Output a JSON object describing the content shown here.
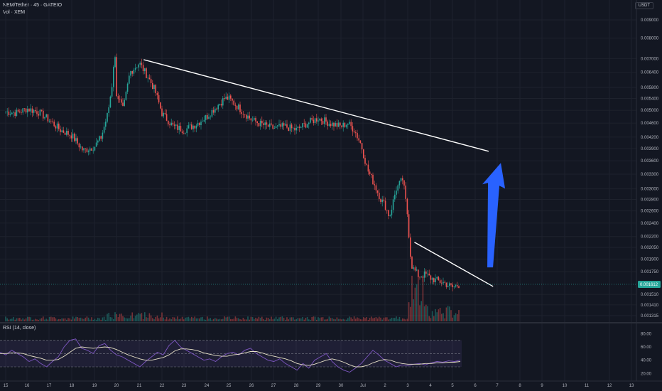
{
  "header": {
    "symbol_line": "NEM/Tether · 45 · GATEIO",
    "volume_line": "Vol · XEM",
    "unit": "USDT"
  },
  "colors": {
    "background": "#131722",
    "up": "#26a69a",
    "down": "#ef5350",
    "trendline": "#ffffff",
    "arrow": "#2962ff",
    "rsi_line": "#7e57c2",
    "rsi_ma": "#e8e2c8",
    "rsi_band": "#7e57c2"
  },
  "chart_data": [
    {
      "type": "candlestick",
      "title": "",
      "x_ticks": [
        "15",
        "16",
        "17",
        "18",
        "19",
        "20",
        "21",
        "22",
        "23",
        "24",
        "25",
        "26",
        "27",
        "28",
        "29",
        "30",
        "Jul",
        "2",
        "3",
        "4",
        "5",
        "6",
        "7",
        "8",
        "9",
        "10",
        "11",
        "12",
        "13"
      ],
      "y_ticks": [
        "0.009000",
        "0.008000",
        "0.007000",
        "0.006400",
        "0.005800",
        "0.005400",
        "0.005000",
        "0.004600",
        "0.004200",
        "0.003900",
        "0.003600",
        "0.003300",
        "0.003000",
        "0.002800",
        "0.002600",
        "0.002400",
        "0.002200",
        "0.002050",
        "0.001900",
        "0.001750",
        "0.001510",
        "0.001410",
        "0.001315"
      ],
      "y_scale": "log",
      "last_price": "0.001612",
      "close_path": [
        [
          "15",
          0.00495
        ],
        [
          "15.5",
          0.00492
        ],
        [
          "16",
          0.00505
        ],
        [
          "16.5",
          0.00495
        ],
        [
          "17",
          0.0047
        ],
        [
          "17.5",
          0.0044
        ],
        [
          "18",
          0.00425
        ],
        [
          "18.5",
          0.00385
        ],
        [
          "19",
          0.00395
        ],
        [
          "19.3",
          0.0042
        ],
        [
          "19.6",
          0.0049
        ],
        [
          "19.8",
          0.006
        ],
        [
          "19.9",
          0.0075
        ],
        [
          "20",
          0.0056
        ],
        [
          "20.3",
          0.005
        ],
        [
          "20.6",
          0.0064
        ],
        [
          "21",
          0.0068
        ],
        [
          "21.4",
          0.0062
        ],
        [
          "21.7",
          0.0057
        ],
        [
          "22",
          0.0049
        ],
        [
          "22.5",
          0.0045
        ],
        [
          "23",
          0.0044
        ],
        [
          "23.5",
          0.00455
        ],
        [
          "24",
          0.0048
        ],
        [
          "24.4",
          0.0051
        ],
        [
          "24.8",
          0.0054
        ],
        [
          "25",
          0.0054
        ],
        [
          "25.5",
          0.00505
        ],
        [
          "26",
          0.0047
        ],
        [
          "26.5",
          0.00455
        ],
        [
          "27",
          0.00445
        ],
        [
          "27.5",
          0.0045
        ],
        [
          "28",
          0.0044
        ],
        [
          "28.5",
          0.0046
        ],
        [
          "29",
          0.00475
        ],
        [
          "29.5",
          0.0046
        ],
        [
          "30",
          0.0045
        ],
        [
          "30.3",
          0.0046
        ],
        [
          "30.6",
          0.0044
        ],
        [
          "30.9",
          0.004
        ],
        [
          "Jul.2",
          0.0034
        ],
        [
          "Jul.5",
          0.0031
        ],
        [
          "Jul.8",
          0.0028
        ],
        [
          "2",
          0.0027
        ],
        [
          "2.2",
          0.0025
        ],
        [
          "2.5",
          0.003
        ],
        [
          "2.8",
          0.0032
        ],
        [
          "3",
          0.0025
        ],
        [
          "3.1",
          0.002
        ],
        [
          "3.2",
          0.0018
        ],
        [
          "3.5",
          0.0017
        ],
        [
          "3.8",
          0.00172
        ],
        [
          "4",
          0.00168
        ],
        [
          "4.3",
          0.00165
        ],
        [
          "4.6",
          0.00163
        ],
        [
          "5",
          0.00158
        ],
        [
          "5.3",
          0.00161
        ]
      ],
      "trendlines": [
        {
          "from": [
            "21.2",
            0.00695
          ],
          "to": [
            "6.6",
            0.00383
          ]
        },
        {
          "from": [
            "3.3",
            0.00212
          ],
          "to": [
            "6.8",
            0.00159
          ]
        }
      ],
      "annotation_arrow": {
        "from": [
          "6.7",
          0.0018
        ],
        "to": [
          "6.7",
          0.00355
        ],
        "meaning": "up"
      }
    },
    {
      "type": "line",
      "title": "RSI (14, close)",
      "y_ticks": [
        "80.00",
        "60.00",
        "40.00",
        "20.00"
      ],
      "ylim": [
        15,
        90
      ],
      "bands": [
        30,
        50,
        70
      ],
      "series": [
        {
          "values": [
            52,
            48,
            55,
            50,
            45,
            38,
            42,
            35,
            30,
            38,
            45,
            60,
            70,
            72,
            58,
            55,
            50,
            62,
            65,
            55,
            48,
            45,
            40,
            35,
            30,
            38,
            45,
            52,
            48,
            62,
            70,
            60,
            55,
            50,
            45,
            40,
            42,
            38,
            45,
            50,
            52,
            48,
            55,
            58,
            50,
            45,
            40,
            38,
            42,
            35,
            30,
            25,
            35,
            28,
            40,
            45,
            50,
            38,
            30,
            25,
            22,
            28,
            35,
            45,
            55,
            48,
            40,
            35,
            30,
            33,
            32,
            34,
            35,
            33,
            36,
            38,
            37,
            39,
            38,
            40
          ]
        },
        {
          "values": [
            50,
            50,
            51,
            51,
            50,
            47,
            45,
            43,
            40,
            40,
            41,
            46,
            52,
            58,
            60,
            59,
            58,
            59,
            60,
            59,
            56,
            52,
            48,
            45,
            42,
            40,
            40,
            42,
            44,
            48,
            54,
            57,
            57,
            56,
            54,
            51,
            49,
            47,
            46,
            46,
            48,
            49,
            51,
            53,
            53,
            51,
            48,
            46,
            44,
            42,
            39,
            35,
            33,
            32,
            34,
            37,
            40,
            42,
            40,
            37,
            33,
            30,
            30,
            32,
            36,
            39,
            41,
            40,
            37,
            35,
            34,
            34,
            34,
            35,
            35,
            36,
            36,
            37,
            37,
            38
          ]
        }
      ]
    }
  ]
}
